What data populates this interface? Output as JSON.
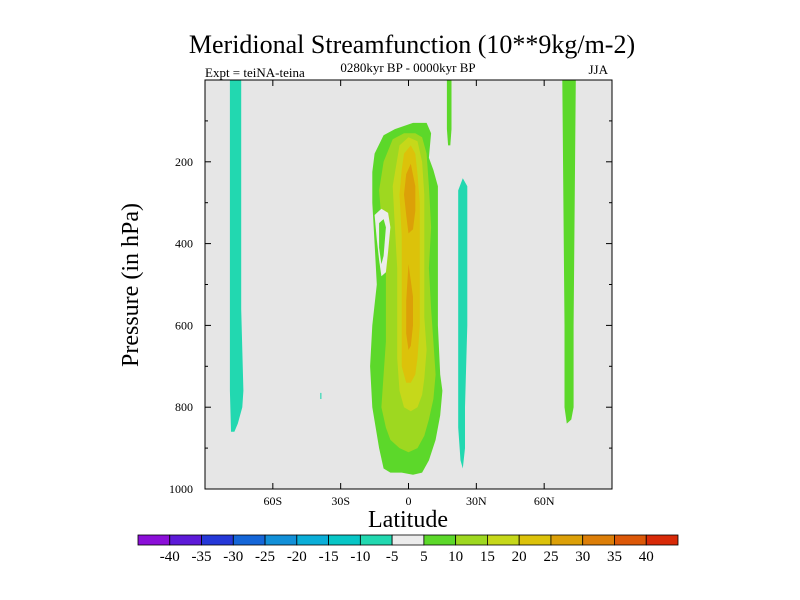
{
  "chart_data": {
    "type": "contour",
    "title": "Meridional Streamfunction (10**9kg/m-2)",
    "left_string": "Expt = teiNA-teina",
    "center_string": "0280kyr BP - 0000kyr BP",
    "right_string": "JJA",
    "xlabel": "Latitude",
    "ylabel": "Pressure (in hPa)",
    "xlim": [
      -90,
      90
    ],
    "ylim": [
      1000,
      0
    ],
    "x_ticks": [
      -60,
      -30,
      0,
      30,
      60
    ],
    "x_tick_labels": [
      "60S",
      "30S",
      "0",
      "30N",
      "60N"
    ],
    "y_ticks": [
      200,
      400,
      600,
      800,
      1000
    ],
    "y_tick_labels": [
      "200",
      "400",
      "600",
      "800",
      "1000"
    ],
    "missing_color": "#e6e6e6",
    "colorbar": {
      "levels": [
        -40,
        -35,
        -30,
        -25,
        -20,
        -15,
        -10,
        -5,
        5,
        10,
        15,
        20,
        25,
        30,
        35,
        40
      ],
      "labels": [
        "-40",
        "-35",
        "-30",
        "-25",
        "-20",
        "-15",
        "-10",
        "-5",
        "5",
        "10",
        "15",
        "20",
        "25",
        "30",
        "35",
        "40"
      ],
      "colors": [
        "#8b0fd8",
        "#5d1ad8",
        "#2538d8",
        "#1566d8",
        "#1290d8",
        "#0aaed8",
        "#08c6c6",
        "#22d8b0",
        "#ececec",
        "#5cd82a",
        "#9ed820",
        "#c6d81a",
        "#dcc20a",
        "#dca008",
        "#dc7e08",
        "#dc5808",
        "#d82a08"
      ]
    },
    "regions": [
      {
        "name": "sh-polar-band",
        "value": -7,
        "level_index": 7,
        "polygon": [
          [
            -79,
            0
          ],
          [
            -74,
            0
          ],
          [
            -74,
            560
          ],
          [
            -73,
            760
          ],
          [
            -73.5,
            800
          ],
          [
            -75.5,
            840
          ],
          [
            -77,
            860
          ],
          [
            -78.5,
            860
          ],
          [
            -79,
            760
          ]
        ]
      },
      {
        "name": "sh-dot",
        "value": -7,
        "level_index": 7,
        "polygon": [
          [
            -39,
            765
          ],
          [
            -38.5,
            765
          ],
          [
            -38.5,
            780
          ],
          [
            -39,
            780
          ]
        ]
      },
      {
        "name": "eq-outer",
        "value": 7,
        "level_index": 9,
        "polygon": [
          [
            -16,
            225
          ],
          [
            -15,
            180
          ],
          [
            -11,
            135
          ],
          [
            -6,
            120
          ],
          [
            2,
            105
          ],
          [
            8,
            105
          ],
          [
            10,
            130
          ],
          [
            9,
            190
          ],
          [
            11,
            220
          ],
          [
            13,
            260
          ],
          [
            13,
            600
          ],
          [
            14,
            720
          ],
          [
            15,
            760
          ],
          [
            14,
            820
          ],
          [
            12,
            880
          ],
          [
            9,
            930
          ],
          [
            6,
            960
          ],
          [
            2,
            965
          ],
          [
            -3,
            960
          ],
          [
            -8,
            960
          ],
          [
            -11,
            950
          ],
          [
            -13,
            900
          ],
          [
            -16,
            800
          ],
          [
            -17,
            700
          ],
          [
            -16,
            600
          ],
          [
            -14,
            500
          ],
          [
            -15,
            400
          ],
          [
            -16,
            300
          ]
        ]
      },
      {
        "name": "eq-l10",
        "value": 12,
        "level_index": 10,
        "polygon": [
          [
            -12,
            340
          ],
          [
            -13,
            270
          ],
          [
            -11,
            200
          ],
          [
            -7,
            145
          ],
          [
            -2,
            130
          ],
          [
            3,
            130
          ],
          [
            6,
            140
          ],
          [
            8,
            180
          ],
          [
            9,
            260
          ],
          [
            10,
            360
          ],
          [
            9,
            460
          ],
          [
            10,
            560
          ],
          [
            11,
            640
          ],
          [
            12,
            720
          ],
          [
            11,
            780
          ],
          [
            9,
            830
          ],
          [
            7,
            870
          ],
          [
            4,
            900
          ],
          [
            0,
            910
          ],
          [
            -4,
            900
          ],
          [
            -8,
            880
          ],
          [
            -10,
            850
          ],
          [
            -12,
            800
          ],
          [
            -11,
            720
          ],
          [
            -10,
            640
          ],
          [
            -10,
            560
          ],
          [
            -10,
            460
          ],
          [
            -11,
            390
          ]
        ]
      },
      {
        "name": "eq-l15",
        "value": 17,
        "level_index": 11,
        "polygon": [
          [
            -4,
            160
          ],
          [
            0,
            140
          ],
          [
            4,
            150
          ],
          [
            6,
            200
          ],
          [
            7,
            280
          ],
          [
            7,
            380
          ],
          [
            7,
            480
          ],
          [
            7,
            580
          ],
          [
            8,
            660
          ],
          [
            7,
            730
          ],
          [
            6,
            770
          ],
          [
            4,
            800
          ],
          [
            1,
            810
          ],
          [
            -2,
            800
          ],
          [
            -4,
            760
          ],
          [
            -5,
            680
          ],
          [
            -5,
            580
          ],
          [
            -5,
            460
          ],
          [
            -6,
            360
          ],
          [
            -7,
            260
          ]
        ]
      },
      {
        "name": "eq-l20",
        "value": 22,
        "level_index": 12,
        "polygon": [
          [
            -2,
            180
          ],
          [
            1,
            160
          ],
          [
            3,
            180
          ],
          [
            4,
            230
          ],
          [
            5,
            300
          ],
          [
            5,
            400
          ],
          [
            5,
            500
          ],
          [
            5,
            600
          ],
          [
            4,
            680
          ],
          [
            3,
            720
          ],
          [
            1,
            740
          ],
          [
            -1,
            740
          ],
          [
            -3,
            700
          ],
          [
            -3,
            600
          ],
          [
            -3,
            480
          ],
          [
            -3,
            380
          ],
          [
            -4,
            280
          ],
          [
            -3,
            220
          ]
        ]
      },
      {
        "name": "eq-l25-upper",
        "value": 27,
        "level_index": 13,
        "polygon": [
          [
            1,
            205
          ],
          [
            3,
            260
          ],
          [
            3,
            320
          ],
          [
            2,
            365
          ],
          [
            0,
            375
          ],
          [
            -1,
            330
          ],
          [
            -2,
            280
          ],
          [
            -1,
            230
          ]
        ]
      },
      {
        "name": "eq-l25-mid",
        "value": 27,
        "level_index": 13,
        "polygon": [
          [
            0,
            450
          ],
          [
            2,
            530
          ],
          [
            2,
            600
          ],
          [
            1,
            650
          ],
          [
            0,
            660
          ],
          [
            -1,
            620
          ],
          [
            -1,
            540
          ]
        ]
      },
      {
        "name": "eq-hole",
        "value": 0,
        "level_index": 8,
        "polygon": [
          [
            -15,
            330
          ],
          [
            -12,
            315
          ],
          [
            -9,
            325
          ],
          [
            -8,
            360
          ],
          [
            -9,
            420
          ],
          [
            -10,
            470
          ],
          [
            -12,
            480
          ],
          [
            -13,
            440
          ],
          [
            -14,
            390
          ]
        ]
      },
      {
        "name": "eq-hole-l10",
        "value": 7,
        "level_index": 9,
        "polygon": [
          [
            -13,
            350
          ],
          [
            -11,
            340
          ],
          [
            -10,
            360
          ],
          [
            -11,
            430
          ],
          [
            -12,
            450
          ],
          [
            -13,
            410
          ]
        ]
      },
      {
        "name": "nh-pos-thin",
        "value": 7,
        "level_index": 9,
        "polygon": [
          [
            17,
            0
          ],
          [
            19,
            0
          ],
          [
            19,
            120
          ],
          [
            18.5,
            160
          ],
          [
            17.5,
            160
          ],
          [
            17,
            120
          ]
        ]
      },
      {
        "name": "nh-neg-band",
        "value": -7,
        "level_index": 7,
        "polygon": [
          [
            22,
            270
          ],
          [
            24,
            240
          ],
          [
            26,
            260
          ],
          [
            26,
            600
          ],
          [
            25,
            800
          ],
          [
            25,
            900
          ],
          [
            24,
            950
          ],
          [
            23,
            930
          ],
          [
            22,
            850
          ]
        ]
      },
      {
        "name": "nh-polar-band",
        "value": 7,
        "level_index": 9,
        "polygon": [
          [
            68,
            0
          ],
          [
            74,
            0
          ],
          [
            73,
            600
          ],
          [
            73,
            800
          ],
          [
            72,
            830
          ],
          [
            70,
            840
          ],
          [
            69,
            800
          ],
          [
            69,
            600
          ]
        ]
      }
    ]
  }
}
